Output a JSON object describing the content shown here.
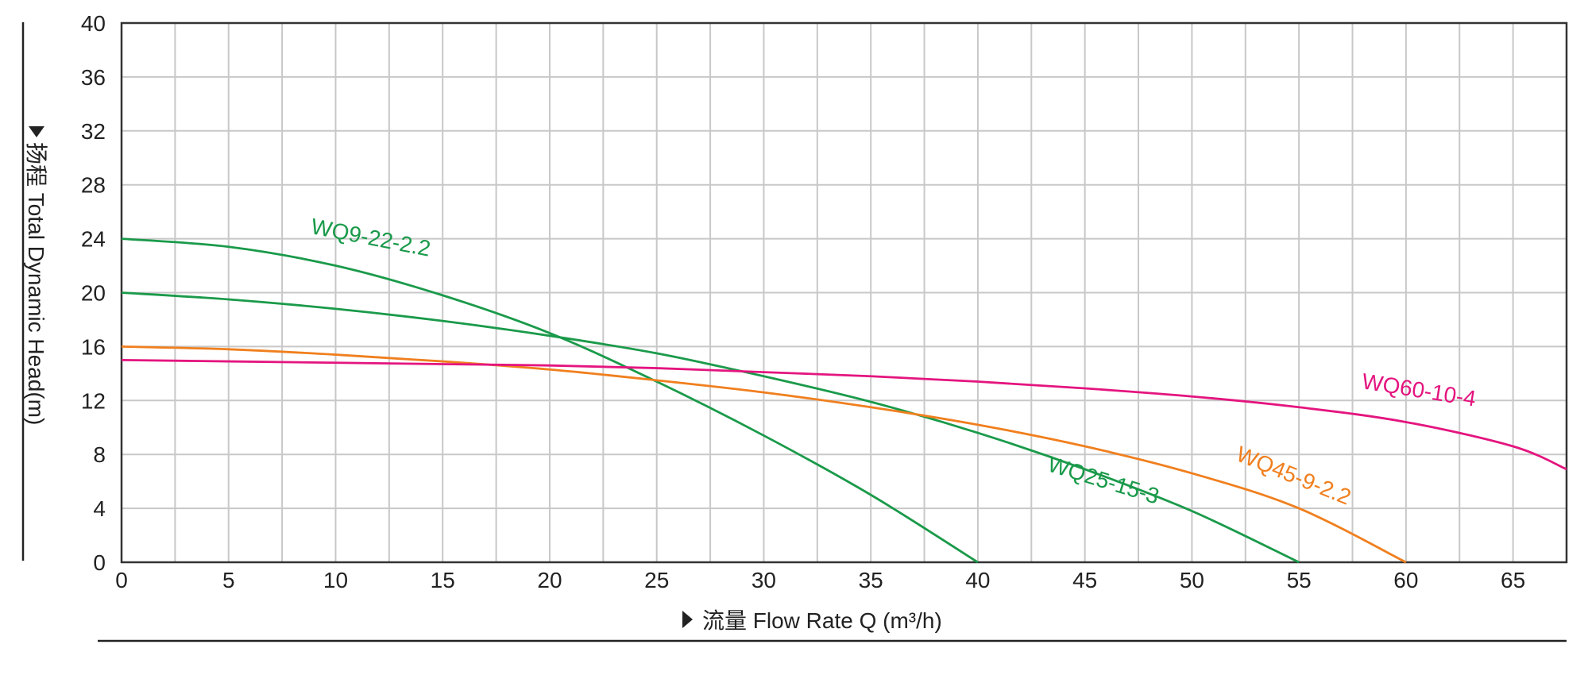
{
  "chart_data": {
    "type": "line",
    "xlabel": "流量 Flow Rate Q (m³/h)",
    "ylabel": "扬程 Total Dynamic Head(m)",
    "xlim": [
      0,
      67.5
    ],
    "ylim": [
      0,
      40
    ],
    "x_ticks": [
      0,
      5,
      10,
      15,
      20,
      25,
      30,
      35,
      40,
      45,
      50,
      55,
      60,
      65
    ],
    "y_ticks": [
      0,
      4,
      8,
      12,
      16,
      20,
      24,
      28,
      32,
      36,
      40
    ],
    "grid": true,
    "series": [
      {
        "name": "WQ9-22-2.2",
        "color": "#1a9a4a",
        "x": [
          0,
          5,
          10,
          15,
          20,
          25,
          30,
          35,
          40
        ],
        "y": [
          24,
          23.4,
          22.0,
          19.8,
          17.0,
          13.4,
          9.4,
          5.0,
          0
        ]
      },
      {
        "name": "WQ25-15-3",
        "color": "#1a9a4a",
        "x": [
          0,
          5,
          10,
          15,
          20,
          25,
          30,
          35,
          40,
          45,
          50,
          55
        ],
        "y": [
          20,
          19.5,
          18.8,
          17.9,
          16.8,
          15.5,
          13.8,
          11.9,
          9.6,
          6.9,
          3.8,
          0
        ]
      },
      {
        "name": "WQ45-9-2.2",
        "color": "#f07f1e",
        "x": [
          0,
          5,
          10,
          15,
          20,
          25,
          30,
          35,
          40,
          45,
          50,
          55,
          60
        ],
        "y": [
          16,
          15.8,
          15.4,
          14.9,
          14.3,
          13.5,
          12.6,
          11.5,
          10.2,
          8.6,
          6.6,
          4.0,
          0
        ]
      },
      {
        "name": "WQ60-10-4",
        "color": "#e4157f",
        "x": [
          0,
          5,
          10,
          15,
          20,
          25,
          30,
          35,
          40,
          45,
          50,
          55,
          60,
          65,
          67.5
        ],
        "y": [
          15,
          14.9,
          14.8,
          14.7,
          14.6,
          14.4,
          14.1,
          13.8,
          13.4,
          12.9,
          12.3,
          11.5,
          10.4,
          8.6,
          6.9
        ]
      }
    ]
  }
}
